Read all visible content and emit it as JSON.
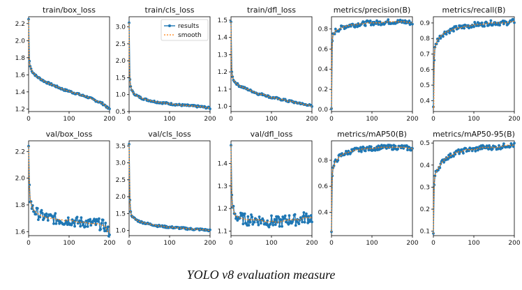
{
  "figure": {
    "caption": "YOLO v8 evaluation measure",
    "legend": {
      "results": "results",
      "smooth": "smooth",
      "placement": "top-right of second panel"
    },
    "colors": {
      "results": "#1f77b4",
      "smooth": "#ff7f0e",
      "axis": "#000000"
    }
  },
  "chart_data": [
    {
      "type": "line",
      "title": "train/box_loss",
      "xlim": [
        0,
        200
      ],
      "ylim": [
        1.17,
        2.28
      ],
      "xticks": [
        0,
        100,
        200
      ],
      "yticks": [
        1.2,
        1.4,
        1.6,
        1.8,
        2.0,
        2.2
      ],
      "ytick_labels": [
        "1.2",
        "1.4",
        "1.6",
        "1.8",
        "2.0",
        "2.2"
      ],
      "series": [
        {
          "name": "results",
          "x": [
            0,
            1,
            2,
            3,
            5,
            10,
            20,
            30,
            40,
            50,
            60,
            70,
            80,
            90,
            100,
            110,
            120,
            130,
            140,
            150,
            160,
            170,
            180,
            190,
            195,
            200
          ],
          "values": [
            2.25,
            1.82,
            1.76,
            1.72,
            1.68,
            1.63,
            1.58,
            1.55,
            1.52,
            1.5,
            1.48,
            1.46,
            1.44,
            1.42,
            1.41,
            1.39,
            1.38,
            1.36,
            1.35,
            1.33,
            1.31,
            1.29,
            1.27,
            1.24,
            1.21,
            1.2
          ]
        }
      ]
    },
    {
      "type": "line",
      "title": "train/cls_loss",
      "xlim": [
        0,
        200
      ],
      "ylim": [
        0.5,
        3.3
      ],
      "xticks": [
        0,
        100,
        200
      ],
      "yticks": [
        0.5,
        1.0,
        1.5,
        2.0,
        2.5,
        3.0
      ],
      "ytick_labels": [
        "0.5",
        "1.0",
        "1.5",
        "2.0",
        "2.5",
        "3.0"
      ],
      "legend": true,
      "series": [
        {
          "name": "results",
          "x": [
            0,
            1,
            2,
            3,
            5,
            10,
            20,
            30,
            40,
            50,
            60,
            70,
            80,
            90,
            100,
            120,
            140,
            160,
            180,
            195,
            200
          ],
          "values": [
            3.12,
            1.7,
            1.45,
            1.3,
            1.18,
            1.05,
            0.96,
            0.9,
            0.86,
            0.83,
            0.8,
            0.78,
            0.76,
            0.75,
            0.73,
            0.7,
            0.68,
            0.66,
            0.64,
            0.61,
            0.6
          ]
        }
      ]
    },
    {
      "type": "line",
      "title": "train/dfl_loss",
      "xlim": [
        0,
        200
      ],
      "ylim": [
        0.97,
        1.52
      ],
      "xticks": [
        0,
        100,
        200
      ],
      "yticks": [
        1.0,
        1.1,
        1.2,
        1.3,
        1.4,
        1.5
      ],
      "ytick_labels": [
        "1.0",
        "1.1",
        "1.2",
        "1.3",
        "1.4",
        "1.5"
      ],
      "series": [
        {
          "name": "results",
          "x": [
            0,
            1,
            2,
            3,
            5,
            10,
            20,
            30,
            40,
            50,
            60,
            70,
            80,
            90,
            100,
            110,
            120,
            130,
            140,
            150,
            160,
            170,
            180,
            190,
            200
          ],
          "values": [
            1.49,
            1.24,
            1.2,
            1.18,
            1.16,
            1.14,
            1.12,
            1.11,
            1.1,
            1.09,
            1.08,
            1.07,
            1.07,
            1.06,
            1.05,
            1.05,
            1.04,
            1.04,
            1.03,
            1.03,
            1.02,
            1.02,
            1.01,
            1.01,
            1.0
          ]
        }
      ]
    },
    {
      "type": "line",
      "title": "metrics/precision(B)",
      "xlim": [
        0,
        200
      ],
      "ylim": [
        -0.02,
        0.92
      ],
      "xticks": [
        0,
        100,
        200
      ],
      "yticks": [
        0.0,
        0.2,
        0.4,
        0.6,
        0.8
      ],
      "ytick_labels": [
        "0.0",
        "0.2",
        "0.4",
        "0.6",
        "0.8"
      ],
      "series": [
        {
          "name": "results",
          "x": [
            0,
            1,
            2,
            3,
            5,
            10,
            20,
            30,
            40,
            50,
            60,
            70,
            80,
            90,
            100,
            120,
            140,
            160,
            180,
            195,
            200
          ],
          "values": [
            0.01,
            0.55,
            0.68,
            0.72,
            0.75,
            0.78,
            0.8,
            0.82,
            0.83,
            0.84,
            0.84,
            0.85,
            0.85,
            0.86,
            0.86,
            0.86,
            0.87,
            0.87,
            0.87,
            0.86,
            0.86
          ]
        }
      ]
    },
    {
      "type": "line",
      "title": "metrics/recall(B)",
      "xlim": [
        0,
        200
      ],
      "ylim": [
        0.33,
        0.94
      ],
      "xticks": [
        0,
        100,
        200
      ],
      "yticks": [
        0.4,
        0.5,
        0.6,
        0.7,
        0.8,
        0.9
      ],
      "ytick_labels": [
        "0.4",
        "0.5",
        "0.6",
        "0.7",
        "0.8",
        "0.9"
      ],
      "series": [
        {
          "name": "results",
          "x": [
            0,
            1,
            2,
            3,
            5,
            10,
            20,
            30,
            40,
            50,
            60,
            70,
            80,
            90,
            100,
            120,
            140,
            160,
            180,
            195,
            200
          ],
          "values": [
            0.36,
            0.35,
            0.66,
            0.72,
            0.75,
            0.79,
            0.82,
            0.84,
            0.85,
            0.86,
            0.87,
            0.87,
            0.88,
            0.88,
            0.89,
            0.89,
            0.9,
            0.9,
            0.9,
            0.91,
            0.91
          ]
        }
      ]
    },
    {
      "type": "line",
      "title": "val/box_loss",
      "xlim": [
        0,
        200
      ],
      "ylim": [
        1.57,
        2.28
      ],
      "xticks": [
        0,
        100,
        200
      ],
      "yticks": [
        1.6,
        1.8,
        2.0,
        2.2
      ],
      "ytick_labels": [
        "1.6",
        "1.8",
        "2.0",
        "2.2"
      ],
      "series": [
        {
          "name": "results",
          "x": [
            0,
            1,
            2,
            3,
            5,
            10,
            20,
            30,
            40,
            50,
            60,
            70,
            80,
            90,
            100,
            110,
            120,
            130,
            140,
            150,
            160,
            170,
            180,
            190,
            195,
            200
          ],
          "values": [
            2.24,
            2.06,
            1.95,
            1.88,
            1.82,
            1.77,
            1.74,
            1.72,
            1.71,
            1.7,
            1.7,
            1.69,
            1.69,
            1.68,
            1.69,
            1.68,
            1.67,
            1.67,
            1.67,
            1.66,
            1.66,
            1.66,
            1.65,
            1.64,
            1.6,
            1.6
          ]
        }
      ]
    },
    {
      "type": "line",
      "title": "val/cls_loss",
      "xlim": [
        0,
        200
      ],
      "ylim": [
        0.85,
        3.65
      ],
      "xticks": [
        0,
        100,
        200
      ],
      "yticks": [
        1.0,
        1.5,
        2.0,
        2.5,
        3.0,
        3.5
      ],
      "ytick_labels": [
        "1.0",
        "1.5",
        "2.0",
        "2.5",
        "3.0",
        "3.5"
      ],
      "series": [
        {
          "name": "results",
          "x": [
            0,
            1,
            2,
            3,
            5,
            10,
            20,
            30,
            40,
            50,
            60,
            70,
            80,
            90,
            100,
            120,
            140,
            160,
            180,
            195,
            200
          ],
          "values": [
            3.55,
            2.63,
            1.9,
            1.6,
            1.48,
            1.38,
            1.3,
            1.25,
            1.22,
            1.19,
            1.17,
            1.14,
            1.13,
            1.11,
            1.1,
            1.08,
            1.06,
            1.04,
            1.03,
            1.01,
            1.0
          ]
        }
      ]
    },
    {
      "type": "line",
      "title": "val/dfl_loss",
      "xlim": [
        0,
        200
      ],
      "ylim": [
        1.08,
        1.5
      ],
      "xticks": [
        0,
        100,
        200
      ],
      "yticks": [
        1.1,
        1.2,
        1.3,
        1.4
      ],
      "ytick_labels": [
        "1.1",
        "1.2",
        "1.3",
        "1.4"
      ],
      "series": [
        {
          "name": "results",
          "x": [
            0,
            1,
            2,
            3,
            5,
            10,
            20,
            30,
            40,
            50,
            60,
            70,
            80,
            90,
            100,
            110,
            120,
            130,
            140,
            150,
            160,
            170,
            180,
            190,
            200
          ],
          "values": [
            1.48,
            1.3,
            1.26,
            1.22,
            1.2,
            1.17,
            1.16,
            1.155,
            1.15,
            1.15,
            1.15,
            1.15,
            1.145,
            1.14,
            1.145,
            1.14,
            1.14,
            1.145,
            1.15,
            1.15,
            1.15,
            1.15,
            1.16,
            1.16,
            1.16
          ]
        }
      ]
    },
    {
      "type": "line",
      "title": "metrics/mAP50(B)",
      "xlim": [
        0,
        200
      ],
      "ylim": [
        0.22,
        0.95
      ],
      "xticks": [
        0,
        100,
        200
      ],
      "yticks": [
        0.4,
        0.6,
        0.8
      ],
      "ytick_labels": [
        "0.4",
        "0.6",
        "0.8"
      ],
      "series": [
        {
          "name": "results",
          "x": [
            0,
            1,
            2,
            3,
            5,
            10,
            20,
            30,
            40,
            50,
            60,
            70,
            80,
            90,
            100,
            120,
            140,
            160,
            180,
            195,
            200
          ],
          "values": [
            0.25,
            0.6,
            0.68,
            0.72,
            0.75,
            0.79,
            0.83,
            0.85,
            0.86,
            0.87,
            0.88,
            0.88,
            0.89,
            0.89,
            0.89,
            0.9,
            0.9,
            0.9,
            0.9,
            0.89,
            0.89
          ]
        }
      ]
    },
    {
      "type": "line",
      "title": "metrics/mAP50-95(B)",
      "xlim": [
        0,
        200
      ],
      "ylim": [
        0.08,
        0.51
      ],
      "xticks": [
        0,
        100,
        200
      ],
      "yticks": [
        0.1,
        0.2,
        0.3,
        0.4,
        0.5
      ],
      "ytick_labels": [
        "0.1",
        "0.2",
        "0.3",
        "0.4",
        "0.5"
      ],
      "series": [
        {
          "name": "results",
          "x": [
            0,
            1,
            2,
            3,
            5,
            10,
            20,
            30,
            40,
            50,
            60,
            70,
            80,
            90,
            100,
            120,
            140,
            160,
            180,
            195,
            200
          ],
          "values": [
            0.09,
            0.25,
            0.31,
            0.34,
            0.36,
            0.38,
            0.41,
            0.43,
            0.44,
            0.45,
            0.46,
            0.46,
            0.47,
            0.47,
            0.47,
            0.48,
            0.48,
            0.48,
            0.49,
            0.49,
            0.49
          ]
        }
      ]
    }
  ]
}
